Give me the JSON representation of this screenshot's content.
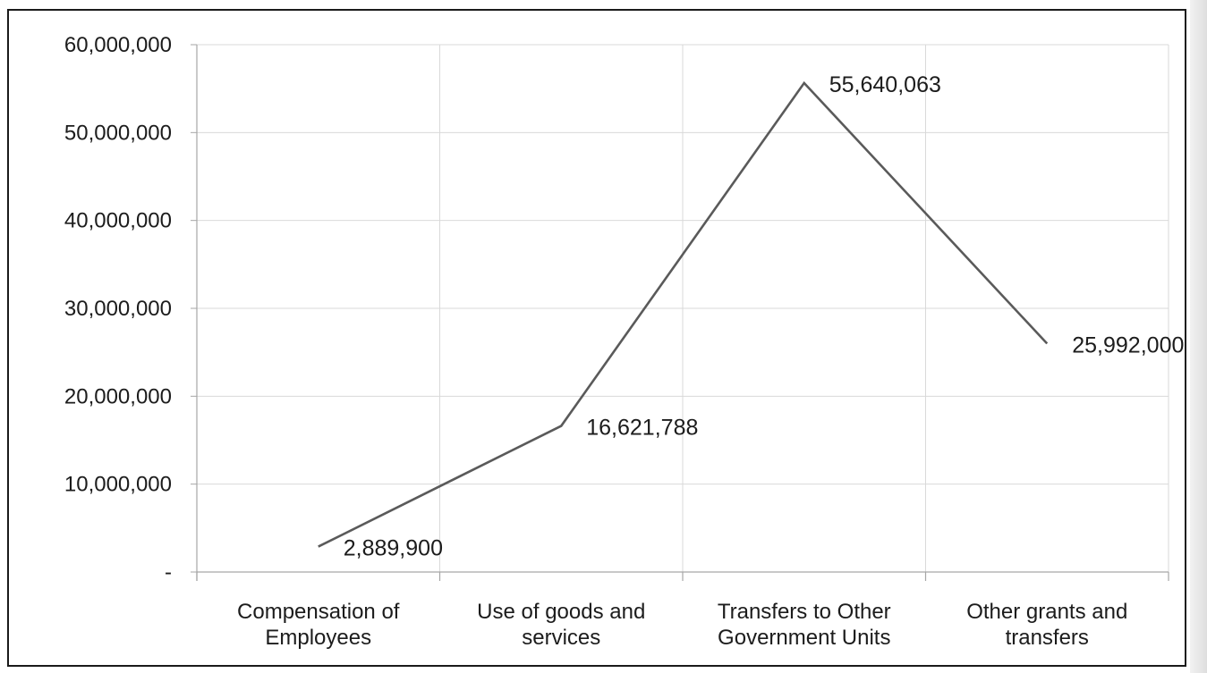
{
  "chart_data": {
    "type": "line",
    "title": "",
    "xlabel": "",
    "ylabel": "",
    "categories": [
      [
        "Compensation of",
        "Employees"
      ],
      [
        "Use of goods and",
        "services"
      ],
      [
        "Transfers to Other",
        "Government Units"
      ],
      [
        "Other grants and",
        "transfers"
      ]
    ],
    "values": [
      2889900,
      16621788,
      55640063,
      25992000
    ],
    "data_labels": [
      "2,889,900",
      "16,621,788",
      "55,640,063",
      "25,992,000"
    ],
    "y_ticks": [
      {
        "value": 0,
        "label": "-"
      },
      {
        "value": 10000000,
        "label": "10,000,000"
      },
      {
        "value": 20000000,
        "label": "20,000,000"
      },
      {
        "value": 30000000,
        "label": "30,000,000"
      },
      {
        "value": 40000000,
        "label": "40,000,000"
      },
      {
        "value": 50000000,
        "label": "50,000,000"
      },
      {
        "value": 60000000,
        "label": "60,000,000"
      }
    ],
    "ylim": [
      0,
      60000000
    ],
    "grid": true,
    "legend": "none",
    "line_color": "#5a5a5a",
    "grid_color": "#d9d9d9",
    "axis_color": "#a6a6a6"
  }
}
